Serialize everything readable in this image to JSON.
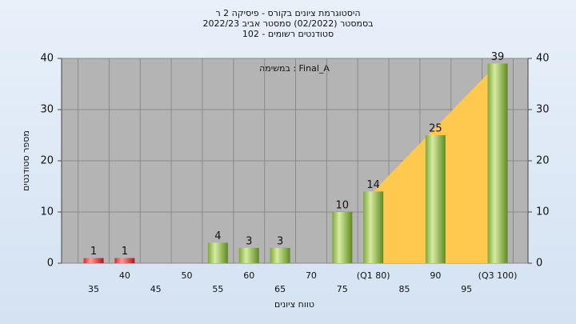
{
  "chart_data": {
    "type": "bar",
    "title": [
      "היסטוגרמת ציונים בקורס - פיסיקה 2 ר",
      "בסמסטר  (02/2022)  סמסטר אביב 2022/23",
      "סטודנטים רשומים - 102"
    ],
    "annotation": "במשימה : Final_A",
    "x_label": "טווח ציונים",
    "y_label": "מספר סטודנטים",
    "categories": [
      "35",
      "40",
      "45",
      "50",
      "55",
      "60",
      "65",
      "70",
      "75",
      "(Q1 80)",
      "85",
      "90",
      "95",
      "(Q3 100)"
    ],
    "values": [
      1,
      1,
      null,
      null,
      4,
      3,
      3,
      null,
      10,
      14,
      null,
      25,
      null,
      39
    ],
    "colors": [
      "red",
      "red",
      "green",
      "green",
      "green",
      "green",
      "green",
      "green",
      "green",
      "green",
      "green",
      "green",
      "green",
      "green"
    ],
    "quartile_color": "#ffc94f",
    "ylim": [
      0,
      40
    ],
    "yticks": [
      0,
      10,
      20,
      30,
      40
    ],
    "grid": true
  }
}
